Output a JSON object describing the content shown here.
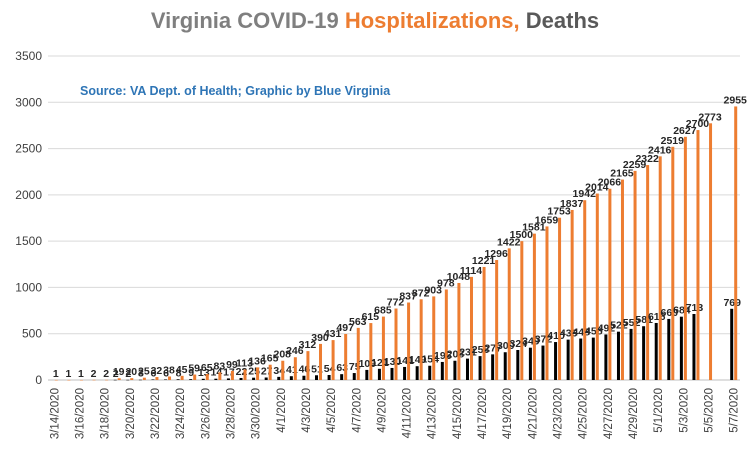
{
  "title": {
    "part1": "Virginia COVID-19 ",
    "part2": "Hospitalizations,",
    "part3": " Deaths"
  },
  "source_note": "Source: VA Dept. of Health; Graphic by Blue Virginia",
  "colors": {
    "hospitalizations": "#ed7d31",
    "deaths": "#000000",
    "grid": "#d9d9d9",
    "title_gray": "#7f7f7f",
    "title_orange": "#ed7d31",
    "title_dark": "#595959",
    "source_blue": "#2e75b6"
  },
  "chart_data": {
    "type": "bar",
    "title": "Virginia COVID-19 Hospitalizations, Deaths",
    "ylim": [
      0,
      3500
    ],
    "yticks": [
      0,
      500,
      1000,
      1500,
      2000,
      2500,
      3000,
      3500
    ],
    "grid": true,
    "legend": "none",
    "categories": [
      "3/14/2020",
      "3/15/2020",
      "3/16/2020",
      "3/17/2020",
      "3/18/2020",
      "3/19/2020",
      "3/20/2020",
      "3/21/2020",
      "3/22/2020",
      "3/23/2020",
      "3/24/2020",
      "3/25/2020",
      "3/26/2020",
      "3/27/2020",
      "3/28/2020",
      "3/29/2020",
      "3/30/2020",
      "3/31/2020",
      "4/1/2020",
      "4/2/2020",
      "4/3/2020",
      "4/4/2020",
      "4/5/2020",
      "4/6/2020",
      "4/7/2020",
      "4/8/2020",
      "4/9/2020",
      "4/10/2020",
      "4/11/2020",
      "4/12/2020",
      "4/13/2020",
      "4/14/2020",
      "4/15/2020",
      "4/16/2020",
      "4/17/2020",
      "4/18/2020",
      "4/19/2020",
      "4/20/2020",
      "4/21/2020",
      "4/22/2020",
      "4/23/2020",
      "4/24/2020",
      "4/25/2020",
      "4/26/2020",
      "4/27/2020",
      "4/28/2020",
      "4/29/2020",
      "4/30/2020",
      "5/1/2020",
      "5/2/2020",
      "5/3/2020",
      "5/4/2020",
      "5/5/2020",
      "5/6/2020",
      "5/7/2020"
    ],
    "tick_labels": [
      "3/14/2020",
      "3/16/2020",
      "3/18/2020",
      "3/20/2020",
      "3/22/2020",
      "3/24/2020",
      "3/26/2020",
      "3/28/2020",
      "3/30/2020",
      "4/1/2020",
      "4/3/2020",
      "4/5/2020",
      "4/7/2020",
      "4/9/2020",
      "4/11/2020",
      "4/13/2020",
      "4/15/2020",
      "4/17/2020",
      "4/19/2020",
      "4/21/2020",
      "4/23/2020",
      "4/25/2020",
      "4/27/2020",
      "4/29/2020",
      "5/1/2020",
      "5/3/2020",
      "5/5/2020",
      "5/7/2020"
    ],
    "series": [
      {
        "values": [
          1,
          1,
          1,
          2,
          2,
          19,
          20,
          25,
          32,
          38,
          45,
          59,
          65,
          83,
          99,
          113,
          136,
          165,
          208,
          246,
          312,
          390,
          431,
          497,
          563,
          615,
          685,
          772,
          837,
          872,
          903,
          978,
          1048,
          1114,
          1221,
          1296,
          1422,
          1500,
          1581,
          1659,
          1753,
          1837,
          1942,
          2014,
          2066,
          2165,
          2259,
          2322,
          2416,
          2519,
          2627,
          2700,
          2773,
          null,
          2955
        ]
      },
      {
        "values": [
          null,
          null,
          null,
          null,
          null,
          2,
          2,
          3,
          6,
          6,
          8,
          9,
          13,
          14,
          17,
          22,
          25,
          27,
          34,
          41,
          46,
          51,
          54,
          63,
          75,
          109,
          121,
          130,
          141,
          149,
          154,
          195,
          208,
          231,
          258,
          277,
          300,
          324,
          349,
          372,
          410,
          436,
          448,
          458,
          492,
          522,
          552,
          581,
          616,
          660,
          684,
          713,
          null,
          null,
          769
        ]
      }
    ]
  }
}
